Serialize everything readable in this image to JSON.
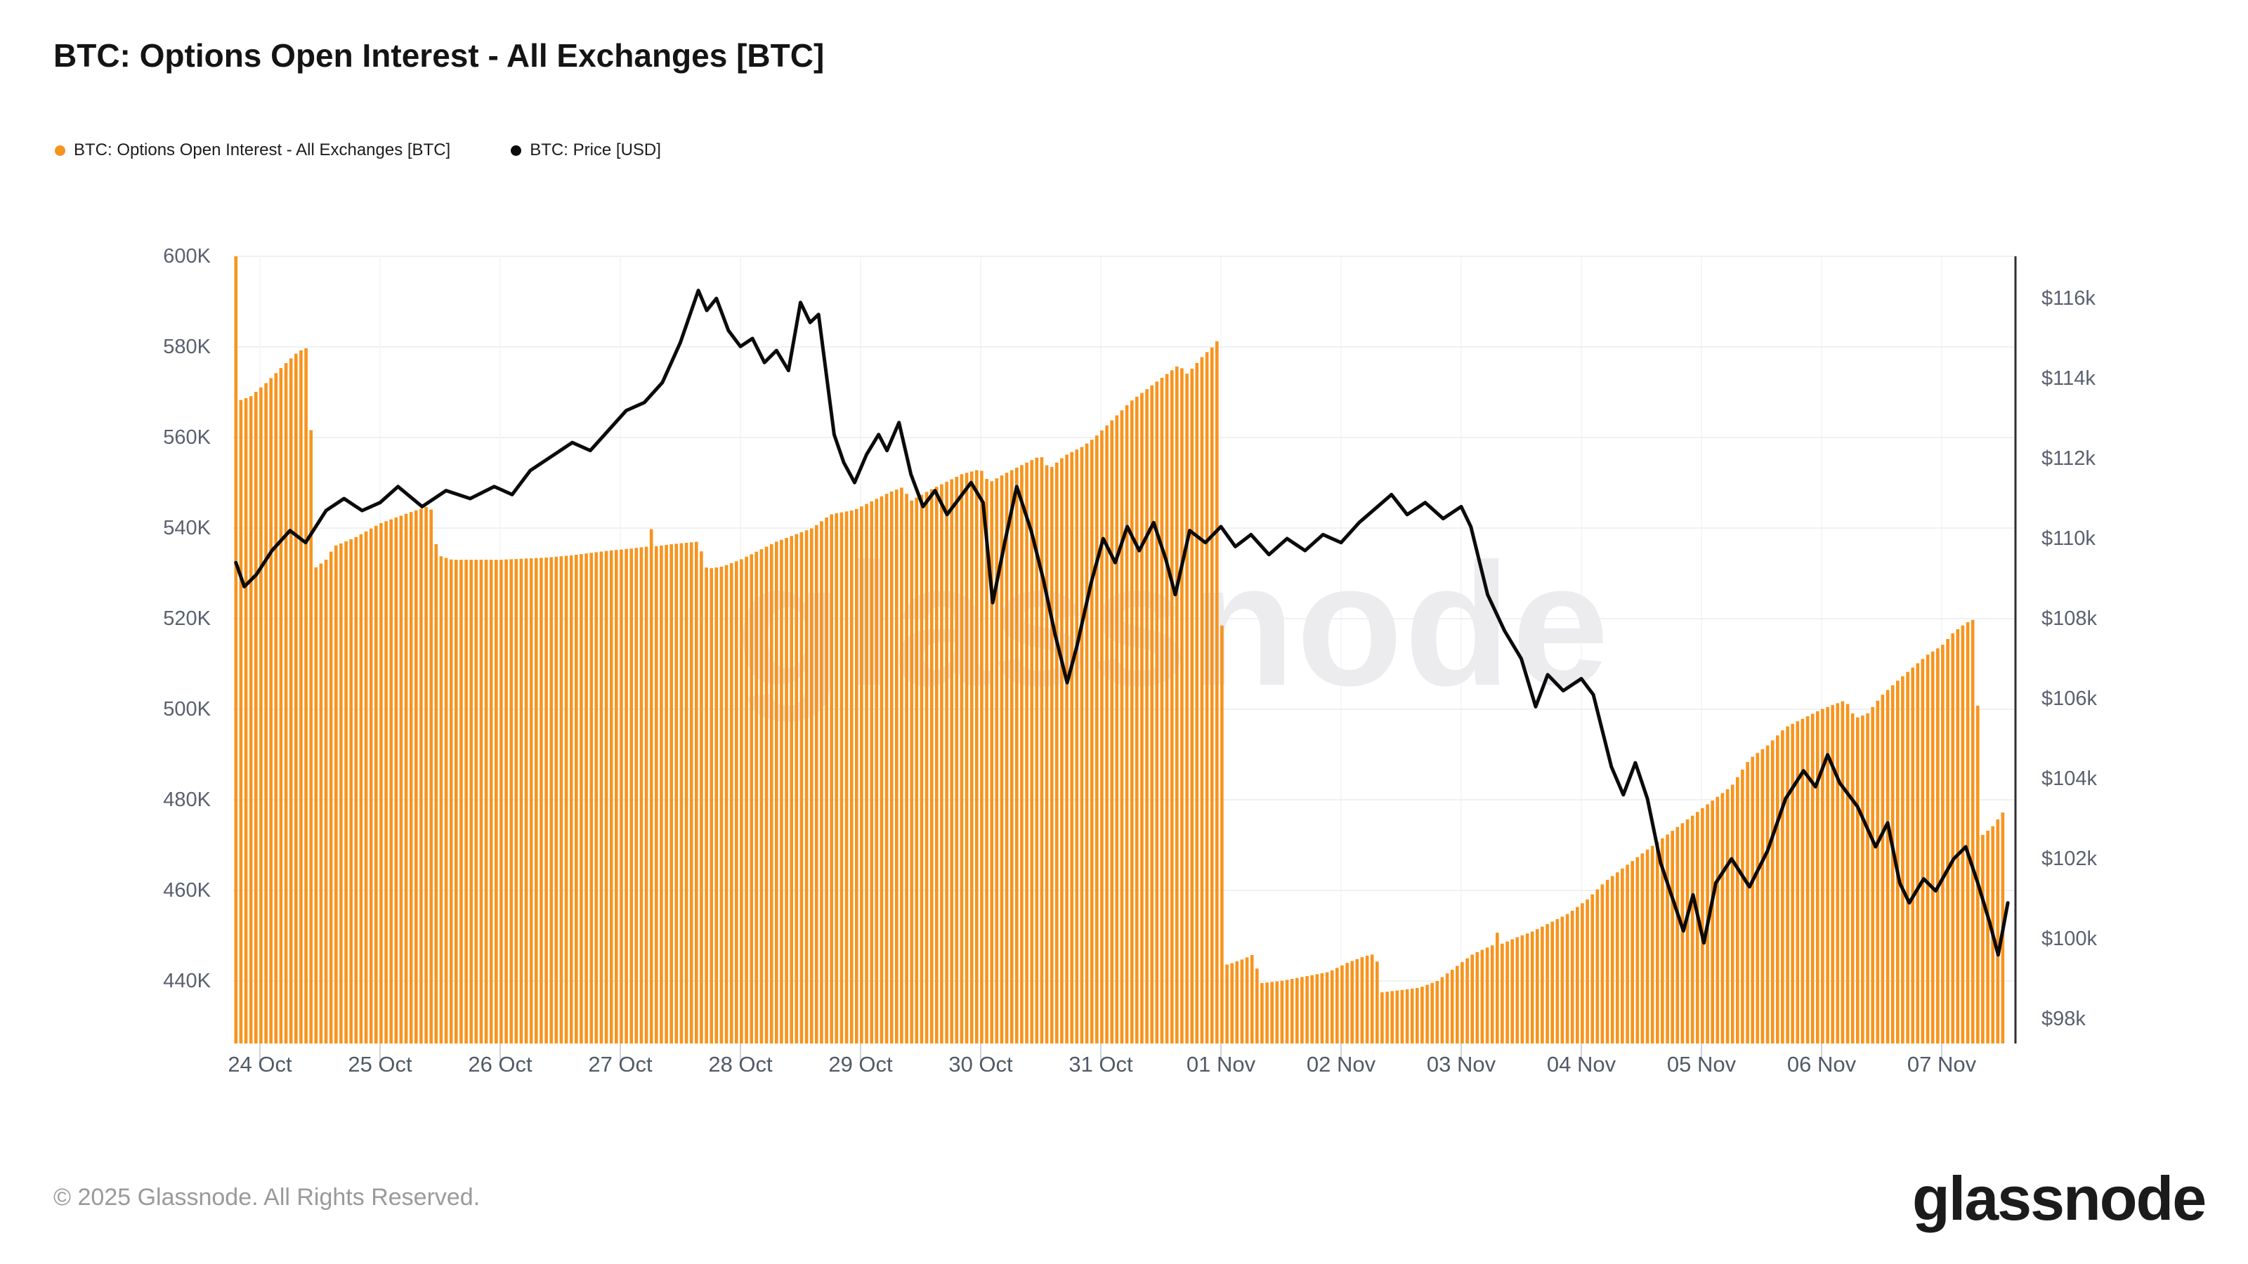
{
  "title": "BTC: Options Open Interest - All Exchanges [BTC]",
  "legend": {
    "items": [
      {
        "label": "BTC: Options Open Interest - All Exchanges [BTC]",
        "color": "#F7941E"
      },
      {
        "label": "BTC: Price [USD]",
        "color": "#0b0b0b"
      }
    ]
  },
  "watermark": {
    "text": "glassnode",
    "color": "#ececee"
  },
  "footer": {
    "copyright": "© 2025 Glassnode. All Rights Reserved.",
    "brand": "glassnode"
  },
  "axes": {
    "left": {
      "items": [
        {
          "label": "600K",
          "value": 600
        },
        {
          "label": "580K",
          "value": 580
        },
        {
          "label": "560K",
          "value": 560
        },
        {
          "label": "540K",
          "value": 540
        },
        {
          "label": "520K",
          "value": 520
        },
        {
          "label": "500K",
          "value": 500
        },
        {
          "label": "480K",
          "value": 480
        },
        {
          "label": "460K",
          "value": 460
        },
        {
          "label": "440K",
          "value": 440
        }
      ]
    },
    "right": {
      "items": [
        {
          "label": "$116k",
          "value": 116
        },
        {
          "label": "$114k",
          "value": 114
        },
        {
          "label": "$112k",
          "value": 112
        },
        {
          "label": "$110k",
          "value": 110
        },
        {
          "label": "$108k",
          "value": 108
        },
        {
          "label": "$106k",
          "value": 106
        },
        {
          "label": "$104k",
          "value": 104
        },
        {
          "label": "$102k",
          "value": 102
        },
        {
          "label": "$100k",
          "value": 100
        },
        {
          "label": "$98k",
          "value": 98
        }
      ]
    },
    "bottom": {
      "items": [
        {
          "label": "24 Oct",
          "day": 0
        },
        {
          "label": "25 Oct",
          "day": 1
        },
        {
          "label": "26 Oct",
          "day": 2
        },
        {
          "label": "27 Oct",
          "day": 3
        },
        {
          "label": "28 Oct",
          "day": 4
        },
        {
          "label": "29 Oct",
          "day": 5
        },
        {
          "label": "30 Oct",
          "day": 6
        },
        {
          "label": "31 Oct",
          "day": 7
        },
        {
          "label": "01 Nov",
          "day": 8
        },
        {
          "label": "02 Nov",
          "day": 9
        },
        {
          "label": "03 Nov",
          "day": 10
        },
        {
          "label": "04 Nov",
          "day": 11
        },
        {
          "label": "05 Nov",
          "day": 12
        },
        {
          "label": "06 Nov",
          "day": 13
        },
        {
          "label": "07 Nov",
          "day": 14
        }
      ]
    }
  },
  "chart_data": {
    "type": "bar+line",
    "title": "BTC: Options Open Interest - All Exchanges [BTC]",
    "x_axis": {
      "unit": "days since 24 Oct 00:00",
      "range": [
        -0.2,
        14.55
      ],
      "tick_labels": [
        "24 Oct",
        "25 Oct",
        "26 Oct",
        "27 Oct",
        "28 Oct",
        "29 Oct",
        "30 Oct",
        "31 Oct",
        "01 Nov",
        "02 Nov",
        "03 Nov",
        "04 Nov",
        "05 Nov",
        "06 Nov",
        "07 Nov"
      ],
      "bar_resolution_days": 0.0416667
    },
    "y_left": {
      "min": 440,
      "max": 600,
      "step": 20,
      "unit": "K BTC",
      "applies_to": "bars"
    },
    "y_right": {
      "min": 98,
      "max": 116,
      "step": 2,
      "unit": "$k USD",
      "applies_to": "line"
    },
    "grid": true,
    "legend_position": "top-left",
    "series": [
      {
        "name": "BTC: Options Open Interest - All Exchanges [BTC]",
        "type": "bar",
        "color": "#F7941E",
        "unit": "K BTC",
        "y_axis": "left",
        "points": [
          [
            -0.2,
            600
          ],
          [
            -0.196,
            600
          ],
          [
            -0.19,
            568
          ],
          [
            -0.08,
            569
          ],
          [
            0.05,
            572
          ],
          [
            0.2,
            576
          ],
          [
            0.32,
            579
          ],
          [
            0.41,
            580
          ],
          [
            0.45,
            531
          ],
          [
            0.55,
            533
          ],
          [
            0.62,
            536
          ],
          [
            0.8,
            538
          ],
          [
            1.0,
            541
          ],
          [
            1.2,
            543
          ],
          [
            1.42,
            545
          ],
          [
            1.48,
            534
          ],
          [
            1.6,
            533
          ],
          [
            2.0,
            533
          ],
          [
            2.4,
            533.5
          ],
          [
            2.6,
            534
          ],
          [
            2.9,
            535
          ],
          [
            3.1,
            535.5
          ],
          [
            3.25,
            536
          ],
          [
            3.27,
            545
          ],
          [
            3.3,
            536
          ],
          [
            3.45,
            536.5
          ],
          [
            3.65,
            537
          ],
          [
            3.72,
            531
          ],
          [
            3.85,
            531.5
          ],
          [
            4.0,
            533
          ],
          [
            4.15,
            535
          ],
          [
            4.3,
            537
          ],
          [
            4.45,
            538.5
          ],
          [
            4.6,
            540
          ],
          [
            4.75,
            543
          ],
          [
            4.95,
            544
          ],
          [
            5.1,
            546
          ],
          [
            5.25,
            548
          ],
          [
            5.35,
            549
          ],
          [
            5.42,
            546
          ],
          [
            5.55,
            548
          ],
          [
            5.7,
            550
          ],
          [
            5.85,
            552
          ],
          [
            6.0,
            553
          ],
          [
            6.07,
            550
          ],
          [
            6.2,
            552
          ],
          [
            6.35,
            554
          ],
          [
            6.5,
            556
          ],
          [
            6.57,
            553
          ],
          [
            6.7,
            556
          ],
          [
            6.85,
            558
          ],
          [
            6.95,
            560
          ],
          [
            7.1,
            564
          ],
          [
            7.25,
            568
          ],
          [
            7.4,
            571
          ],
          [
            7.55,
            574
          ],
          [
            7.65,
            576
          ],
          [
            7.72,
            574
          ],
          [
            7.85,
            578
          ],
          [
            7.93,
            580
          ],
          [
            7.99,
            582
          ],
          [
            8.03,
            443.5
          ],
          [
            8.1,
            444
          ],
          [
            8.2,
            445
          ],
          [
            8.28,
            446
          ],
          [
            8.32,
            439.5
          ],
          [
            8.5,
            440
          ],
          [
            8.7,
            441
          ],
          [
            8.9,
            442
          ],
          [
            9.05,
            444
          ],
          [
            9.2,
            445.5
          ],
          [
            9.29,
            446
          ],
          [
            9.34,
            437.5
          ],
          [
            9.5,
            438
          ],
          [
            9.65,
            438.5
          ],
          [
            9.8,
            440
          ],
          [
            9.95,
            443
          ],
          [
            10.1,
            446
          ],
          [
            10.27,
            448
          ],
          [
            10.29,
            452
          ],
          [
            10.32,
            448
          ],
          [
            10.45,
            449.5
          ],
          [
            10.6,
            451
          ],
          [
            10.75,
            453
          ],
          [
            10.9,
            455
          ],
          [
            11.05,
            458
          ],
          [
            11.2,
            462
          ],
          [
            11.35,
            465
          ],
          [
            11.5,
            468
          ],
          [
            11.65,
            471
          ],
          [
            11.8,
            474
          ],
          [
            11.95,
            477
          ],
          [
            12.1,
            480
          ],
          [
            12.25,
            483
          ],
          [
            12.4,
            489
          ],
          [
            12.55,
            492
          ],
          [
            12.7,
            496
          ],
          [
            12.85,
            498
          ],
          [
            13.0,
            500
          ],
          [
            13.1,
            501
          ],
          [
            13.2,
            502
          ],
          [
            13.28,
            498
          ],
          [
            13.38,
            499
          ],
          [
            13.5,
            503
          ],
          [
            13.62,
            506
          ],
          [
            13.75,
            509
          ],
          [
            13.88,
            512
          ],
          [
            14.0,
            514
          ],
          [
            14.1,
            517
          ],
          [
            14.2,
            519
          ],
          [
            14.28,
            520
          ],
          [
            14.33,
            472
          ],
          [
            14.42,
            474
          ],
          [
            14.53,
            478
          ]
        ]
      },
      {
        "name": "BTC: Price [USD]",
        "type": "line",
        "color": "#0b0b0b",
        "unit": "k USD",
        "y_axis": "right",
        "points": [
          [
            -0.2,
            109.4
          ],
          [
            -0.13,
            108.8
          ],
          [
            -0.03,
            109.1
          ],
          [
            0.1,
            109.7
          ],
          [
            0.25,
            110.2
          ],
          [
            0.38,
            109.9
          ],
          [
            0.55,
            110.7
          ],
          [
            0.7,
            111.0
          ],
          [
            0.85,
            110.7
          ],
          [
            1.0,
            110.9
          ],
          [
            1.15,
            111.3
          ],
          [
            1.35,
            110.8
          ],
          [
            1.55,
            111.2
          ],
          [
            1.75,
            111.0
          ],
          [
            1.95,
            111.3
          ],
          [
            2.1,
            111.1
          ],
          [
            2.25,
            111.7
          ],
          [
            2.45,
            112.1
          ],
          [
            2.6,
            112.4
          ],
          [
            2.75,
            112.2
          ],
          [
            2.9,
            112.7
          ],
          [
            3.05,
            113.2
          ],
          [
            3.2,
            113.4
          ],
          [
            3.35,
            113.9
          ],
          [
            3.5,
            114.9
          ],
          [
            3.65,
            116.2
          ],
          [
            3.72,
            115.7
          ],
          [
            3.8,
            116.0
          ],
          [
            3.9,
            115.2
          ],
          [
            4.0,
            114.8
          ],
          [
            4.1,
            115.0
          ],
          [
            4.2,
            114.4
          ],
          [
            4.3,
            114.7
          ],
          [
            4.4,
            114.2
          ],
          [
            4.5,
            115.9
          ],
          [
            4.58,
            115.4
          ],
          [
            4.65,
            115.6
          ],
          [
            4.78,
            112.6
          ],
          [
            4.86,
            111.9
          ],
          [
            4.95,
            111.4
          ],
          [
            5.05,
            112.1
          ],
          [
            5.15,
            112.6
          ],
          [
            5.22,
            112.2
          ],
          [
            5.32,
            112.9
          ],
          [
            5.42,
            111.6
          ],
          [
            5.52,
            110.8
          ],
          [
            5.62,
            111.2
          ],
          [
            5.72,
            110.6
          ],
          [
            5.82,
            111.0
          ],
          [
            5.92,
            111.4
          ],
          [
            6.02,
            110.9
          ],
          [
            6.1,
            108.4
          ],
          [
            6.2,
            109.9
          ],
          [
            6.3,
            111.3
          ],
          [
            6.42,
            110.2
          ],
          [
            6.52,
            109.0
          ],
          [
            6.62,
            107.6
          ],
          [
            6.72,
            106.4
          ],
          [
            6.8,
            107.3
          ],
          [
            6.92,
            108.9
          ],
          [
            7.02,
            110.0
          ],
          [
            7.12,
            109.4
          ],
          [
            7.22,
            110.3
          ],
          [
            7.32,
            109.7
          ],
          [
            7.44,
            110.4
          ],
          [
            7.54,
            109.5
          ],
          [
            7.62,
            108.6
          ],
          [
            7.74,
            110.2
          ],
          [
            7.87,
            109.9
          ],
          [
            8.0,
            110.3
          ],
          [
            8.12,
            109.8
          ],
          [
            8.25,
            110.1
          ],
          [
            8.4,
            109.6
          ],
          [
            8.55,
            110.0
          ],
          [
            8.7,
            109.7
          ],
          [
            8.85,
            110.1
          ],
          [
            9.0,
            109.9
          ],
          [
            9.15,
            110.4
          ],
          [
            9.42,
            111.1
          ],
          [
            9.55,
            110.6
          ],
          [
            9.7,
            110.9
          ],
          [
            9.85,
            110.5
          ],
          [
            10.0,
            110.8
          ],
          [
            10.08,
            110.3
          ],
          [
            10.22,
            108.6
          ],
          [
            10.36,
            107.7
          ],
          [
            10.5,
            107.0
          ],
          [
            10.62,
            105.8
          ],
          [
            10.72,
            106.6
          ],
          [
            10.85,
            106.2
          ],
          [
            11.0,
            106.5
          ],
          [
            11.1,
            106.1
          ],
          [
            11.25,
            104.3
          ],
          [
            11.35,
            103.6
          ],
          [
            11.45,
            104.4
          ],
          [
            11.55,
            103.5
          ],
          [
            11.66,
            101.9
          ],
          [
            11.85,
            100.2
          ],
          [
            11.93,
            101.1
          ],
          [
            12.02,
            99.9
          ],
          [
            12.12,
            101.4
          ],
          [
            12.25,
            102.0
          ],
          [
            12.4,
            101.3
          ],
          [
            12.55,
            102.2
          ],
          [
            12.7,
            103.5
          ],
          [
            12.85,
            104.2
          ],
          [
            12.95,
            103.8
          ],
          [
            13.05,
            104.6
          ],
          [
            13.15,
            103.9
          ],
          [
            13.3,
            103.3
          ],
          [
            13.45,
            102.3
          ],
          [
            13.55,
            102.9
          ],
          [
            13.65,
            101.4
          ],
          [
            13.73,
            100.9
          ],
          [
            13.85,
            101.5
          ],
          [
            13.95,
            101.2
          ],
          [
            14.1,
            102.0
          ],
          [
            14.2,
            102.3
          ],
          [
            14.3,
            101.4
          ],
          [
            14.4,
            100.4
          ],
          [
            14.47,
            99.6
          ],
          [
            14.55,
            100.9
          ]
        ]
      }
    ]
  }
}
